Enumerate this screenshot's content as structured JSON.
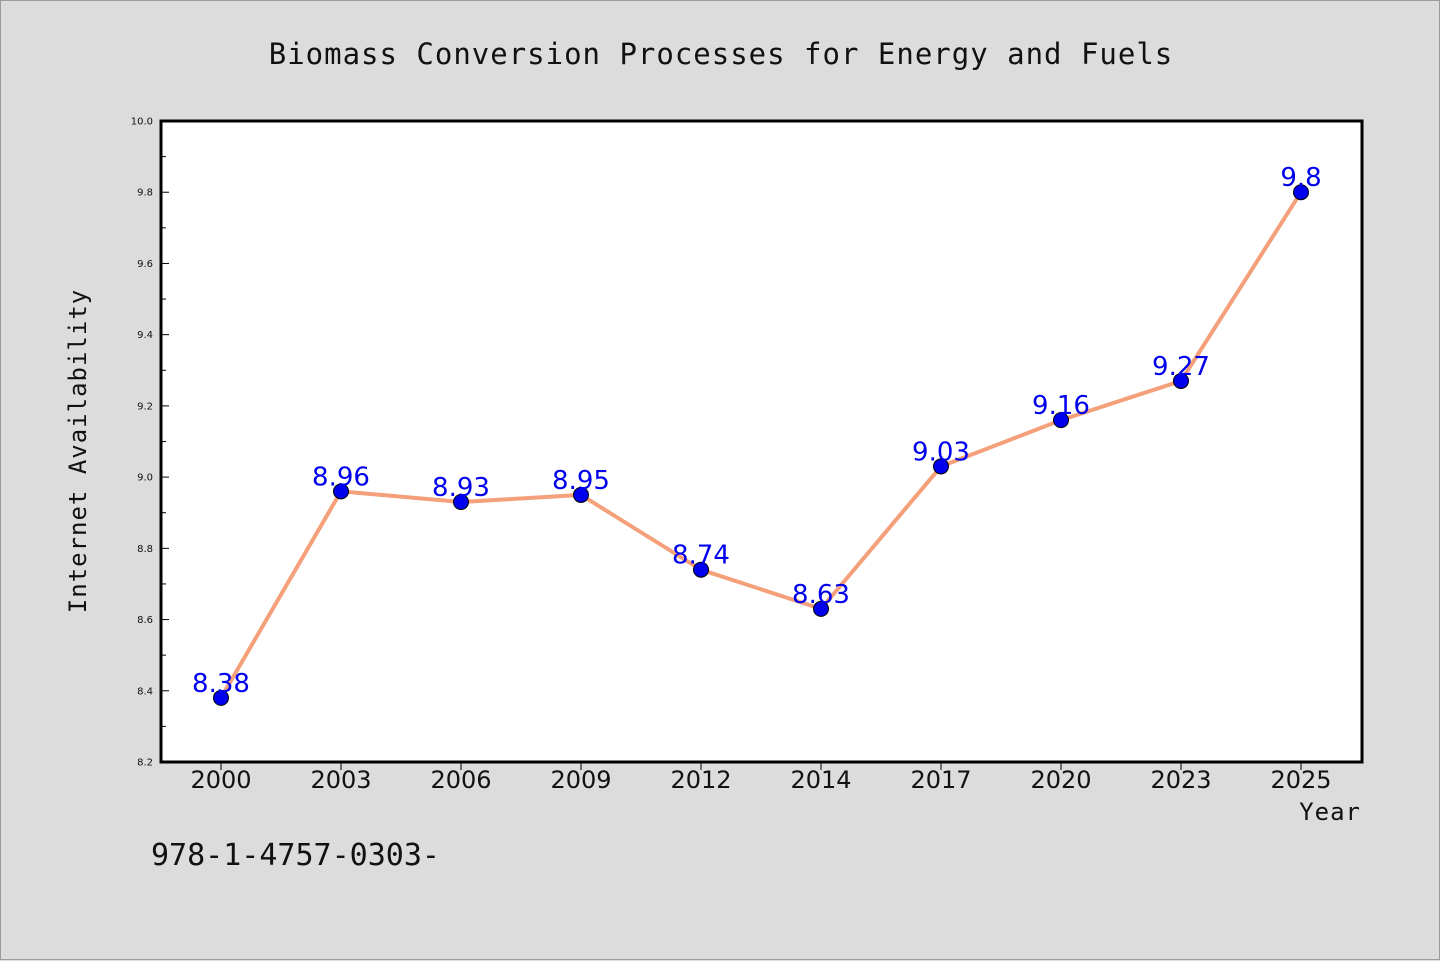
{
  "chart_data": {
    "type": "line",
    "title": "Biomass Conversion Processes for Energy and Fuels",
    "xlabel": "Year",
    "ylabel": "Internet Availability",
    "categories": [
      "2000",
      "2003",
      "2006",
      "2009",
      "2012",
      "2014",
      "2017",
      "2020",
      "2023",
      "2025"
    ],
    "series": [
      {
        "values": [
          8.38,
          8.96,
          8.93,
          8.95,
          8.74,
          8.63,
          9.03,
          9.16,
          9.27,
          9.8
        ],
        "labels": [
          "8.38",
          "8.96",
          "8.93",
          "8.95",
          "8.74",
          "8.63",
          "9.03",
          "9.16",
          "9.27",
          "9.8"
        ],
        "line_color": "#f4a07a",
        "marker_color": "#0000ee"
      }
    ],
    "ylim": [
      8.2,
      10.0
    ],
    "yticks": [
      8.2,
      8.4,
      8.6,
      8.8,
      9.0,
      9.2,
      9.4,
      9.6,
      9.8,
      10.0
    ],
    "ytick_labels": [
      "8.2",
      "8.4",
      "8.6",
      "8.8",
      "9.0",
      "9.2",
      "9.4",
      "9.6",
      "9.8",
      "10.0"
    ],
    "grid": false,
    "legend": "none",
    "label_color": "#0000ee"
  },
  "footnote": "978-1-4757-0303-"
}
